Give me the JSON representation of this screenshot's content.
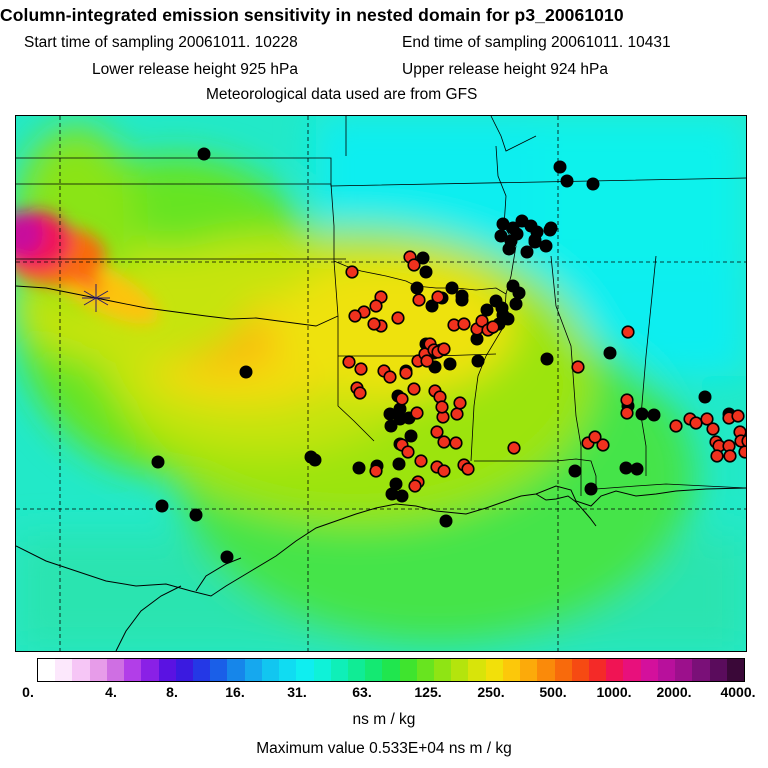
{
  "header": {
    "title": "Column-integrated emission sensitivity in nested domain for p3_20061010",
    "start_label": "Start time of sampling 20061011. 10228",
    "end_label": "End time of sampling 20061011. 10431",
    "lower_label": "Lower release height  925 hPa",
    "upper_label": "Upper release height  924 hPa",
    "met_label": "Meteorological data used are from GFS"
  },
  "colorbar": {
    "tick_labels": [
      "0.",
      "4.",
      "8.",
      "16.",
      "31.",
      "63.",
      "125.",
      "250.",
      "500.",
      "1000.",
      "2000.",
      "4000."
    ],
    "colors": [
      "#ffffff",
      "#fce8fc",
      "#f6c6f6",
      "#e79ce9",
      "#cf6fe3",
      "#b23ee8",
      "#8a20e6",
      "#5a12e2",
      "#3a1ae0",
      "#2438e6",
      "#1a5fe8",
      "#1686ea",
      "#16a8ee",
      "#12c6f0",
      "#10dcf2",
      "#0feef0",
      "#0ff2d8",
      "#0fefb8",
      "#10ec95",
      "#14e972",
      "#20e64e",
      "#3fe42e",
      "#68e41f",
      "#8fe414",
      "#b4e40d",
      "#d8e40a",
      "#f2e00a",
      "#fcc80a",
      "#fcaa0a",
      "#fa8a0a",
      "#f86a0c",
      "#f64a12",
      "#f42a28",
      "#f01454",
      "#e8107c",
      "#d4109c",
      "#b8109c",
      "#9c108c",
      "#7a1078",
      "#5a0c5c",
      "#3a0838"
    ],
    "units": "ns m / kg"
  },
  "footer": {
    "max_value": "Maximum value  0.533E+04 ns m / kg"
  }
}
